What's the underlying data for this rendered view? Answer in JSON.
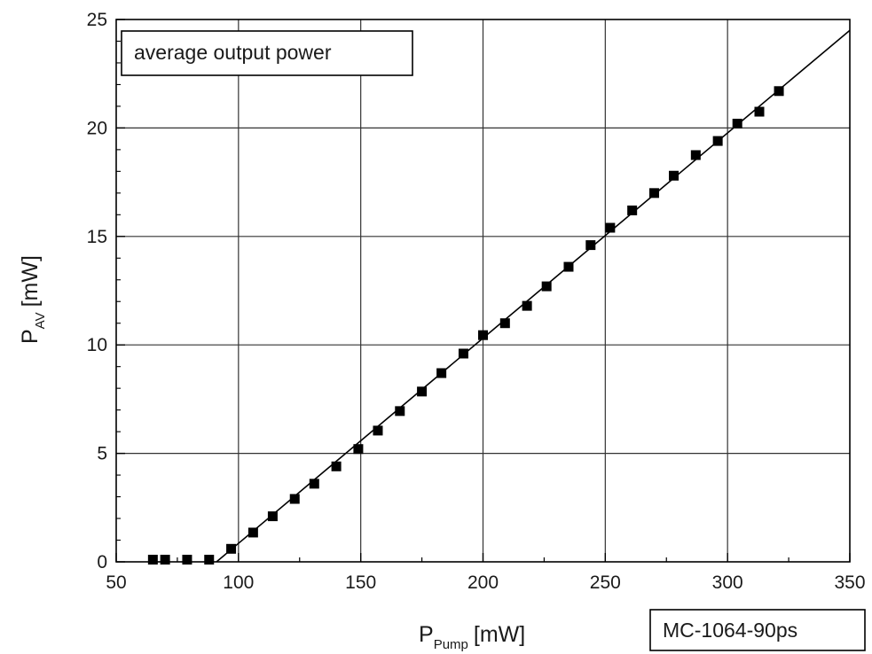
{
  "chart_data": {
    "type": "scatter",
    "annotation_top_left": "average output power",
    "annotation_bottom_right": "MC-1064-90ps",
    "xlabel": {
      "main": "P",
      "sub": "Pump",
      "unit": "[mW]"
    },
    "ylabel": {
      "main": "P",
      "sub": "AV",
      "unit": "[mW]"
    },
    "xlim": [
      50,
      350
    ],
    "ylim": [
      0,
      25
    ],
    "x_ticks": [
      50,
      100,
      150,
      200,
      250,
      300,
      350
    ],
    "y_ticks": [
      0,
      5,
      10,
      15,
      20,
      25
    ],
    "grid": true,
    "series": [
      {
        "marker": "square",
        "x": [
          65,
          70,
          79,
          88,
          97,
          106,
          114,
          123,
          131,
          140,
          149,
          157,
          166,
          175,
          183,
          192,
          200,
          209,
          218,
          226,
          235,
          244,
          252,
          261,
          270,
          278,
          287,
          296,
          304,
          313,
          321
        ],
        "y": [
          0.1,
          0.1,
          0.1,
          0.1,
          0.6,
          1.35,
          2.1,
          2.9,
          3.6,
          4.4,
          5.2,
          6.05,
          6.95,
          7.85,
          8.7,
          9.6,
          10.45,
          11.0,
          11.8,
          12.7,
          13.6,
          14.6,
          15.4,
          16.2,
          17.0,
          17.8,
          18.75,
          19.4,
          20.2,
          20.75,
          21.7
        ]
      }
    ],
    "fit_line": {
      "x": [
        91,
        350
      ],
      "y": [
        0,
        24.5
      ],
      "color": "#000000"
    }
  }
}
